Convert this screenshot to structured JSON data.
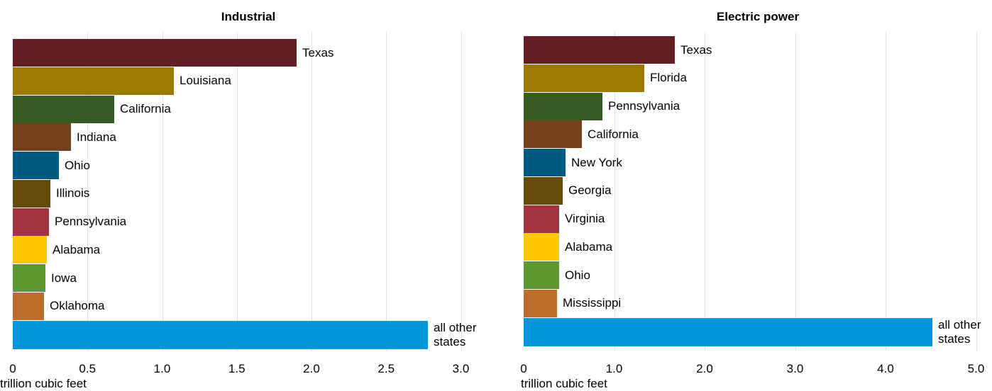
{
  "chart_data": [
    {
      "type": "bar",
      "orientation": "horizontal",
      "title": "Industrial",
      "xlabel": "trillion cubic feet",
      "xlim": [
        0,
        3.2
      ],
      "x_ticks": [
        {
          "value": 0,
          "label": "0"
        },
        {
          "value": 0.5,
          "label": "0.5"
        },
        {
          "value": 1.0,
          "label": "1.0"
        },
        {
          "value": 1.5,
          "label": "1.5"
        },
        {
          "value": 2.0,
          "label": "2.0"
        },
        {
          "value": 2.5,
          "label": "2.5"
        },
        {
          "value": 3.0,
          "label": "3.0"
        }
      ],
      "grid": true,
      "bars": [
        {
          "category": "Texas",
          "value": 1.9,
          "color": "#641e26"
        },
        {
          "category": "Louisiana",
          "value": 1.08,
          "color": "#9a7a00"
        },
        {
          "category": "California",
          "value": 0.68,
          "color": "#375c23"
        },
        {
          "category": "Indiana",
          "value": 0.39,
          "color": "#72401d"
        },
        {
          "category": "Ohio",
          "value": 0.31,
          "color": "#005a80"
        },
        {
          "category": "Illinois",
          "value": 0.25,
          "color": "#664a0b"
        },
        {
          "category": "Pennsylvania",
          "value": 0.24,
          "color": "#a33340"
        },
        {
          "category": "Alabama",
          "value": 0.23,
          "color": "#ffc700"
        },
        {
          "category": "Iowa",
          "value": 0.22,
          "color": "#5d9731"
        },
        {
          "category": "Oklahoma",
          "value": 0.21,
          "color": "#bb6d2a"
        },
        {
          "category": "all other states",
          "label_lines": [
            "all other",
            "states"
          ],
          "value": 2.78,
          "color": "#0096d7"
        }
      ]
    },
    {
      "type": "bar",
      "orientation": "horizontal",
      "title": "Electric power",
      "xlabel": "trillion cubic feet",
      "xlim": [
        0,
        5.15
      ],
      "x_ticks": [
        {
          "value": 0,
          "label": "0"
        },
        {
          "value": 1.0,
          "label": "1.0"
        },
        {
          "value": 2.0,
          "label": "2.0"
        },
        {
          "value": 3.0,
          "label": "3.0"
        },
        {
          "value": 4.0,
          "label": "4.0"
        },
        {
          "value": 5.0,
          "label": "5.0"
        }
      ],
      "grid": true,
      "bars": [
        {
          "category": "Texas",
          "value": 1.67,
          "color": "#641e26"
        },
        {
          "category": "Florida",
          "value": 1.33,
          "color": "#9a7a00"
        },
        {
          "category": "Pennsylvania",
          "value": 0.87,
          "color": "#375c23"
        },
        {
          "category": "California",
          "value": 0.64,
          "color": "#72401d"
        },
        {
          "category": "New York",
          "value": 0.46,
          "color": "#005a80"
        },
        {
          "category": "Georgia",
          "value": 0.43,
          "color": "#664a0b"
        },
        {
          "category": "Virginia",
          "value": 0.39,
          "color": "#a33340"
        },
        {
          "category": "Alabama",
          "value": 0.39,
          "color": "#ffc700"
        },
        {
          "category": "Ohio",
          "value": 0.39,
          "color": "#5d9731"
        },
        {
          "category": "Mississippi",
          "value": 0.37,
          "color": "#bb6d2a"
        },
        {
          "category": "all other states",
          "label_lines": [
            "all other",
            "states"
          ],
          "value": 4.52,
          "color": "#0096d7"
        }
      ]
    }
  ]
}
